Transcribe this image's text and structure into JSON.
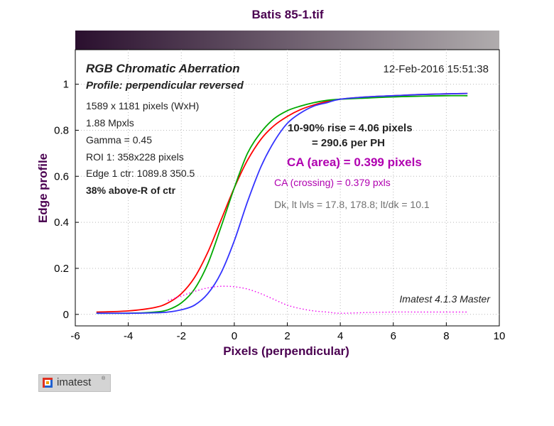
{
  "chart_data": {
    "type": "line",
    "title": "Batis 85-1.tif",
    "xlabel": "Pixels (perpendicular)",
    "ylabel": "Edge profile",
    "xlim": [
      -6,
      10
    ],
    "ylim": [
      -0.05,
      1.15
    ],
    "x_ticks": [
      -6,
      -4,
      -2,
      0,
      2,
      4,
      6,
      8,
      10
    ],
    "y_ticks": [
      0,
      0.2,
      0.4,
      0.6,
      0.8,
      1
    ],
    "x_tick_labels": [
      "-6",
      "-4",
      "-2",
      "0",
      "2",
      "4",
      "6",
      "8",
      "10"
    ],
    "y_tick_labels": [
      "0",
      "0.2",
      "0.4",
      "0.6",
      "0.8",
      "1"
    ],
    "grid": true,
    "series": [
      {
        "color": "#ff0000",
        "x": [
          -5.2,
          -4,
          -3,
          -2.5,
          -2,
          -1.5,
          -1,
          -0.5,
          0,
          0.5,
          1,
          1.5,
          2,
          2.5,
          3,
          3.5,
          4,
          5,
          6,
          7,
          8,
          8.8
        ],
        "y": [
          0.01,
          0.015,
          0.03,
          0.05,
          0.09,
          0.16,
          0.27,
          0.41,
          0.55,
          0.67,
          0.76,
          0.82,
          0.86,
          0.89,
          0.91,
          0.925,
          0.935,
          0.945,
          0.95,
          0.955,
          0.958,
          0.96
        ]
      },
      {
        "color": "#00aa00",
        "x": [
          -5.2,
          -4,
          -3,
          -2.5,
          -2,
          -1.5,
          -1,
          -0.5,
          0,
          0.5,
          1,
          1.5,
          2,
          2.5,
          3,
          3.5,
          4,
          5,
          6,
          7,
          8,
          8.8
        ],
        "y": [
          0.005,
          0.005,
          0.01,
          0.02,
          0.05,
          0.11,
          0.22,
          0.38,
          0.55,
          0.7,
          0.79,
          0.85,
          0.885,
          0.905,
          0.92,
          0.93,
          0.935,
          0.94,
          0.945,
          0.948,
          0.95,
          0.95
        ]
      },
      {
        "color": "#3333ff",
        "x": [
          -5.2,
          -4,
          -3,
          -2.5,
          -2,
          -1.5,
          -1,
          -0.5,
          0,
          0.5,
          1,
          1.5,
          2,
          2.5,
          3,
          3.5,
          4,
          5,
          6,
          7,
          8,
          8.8
        ],
        "y": [
          0.005,
          0.005,
          0.007,
          0.01,
          0.02,
          0.04,
          0.09,
          0.18,
          0.32,
          0.49,
          0.64,
          0.75,
          0.83,
          0.875,
          0.905,
          0.92,
          0.935,
          0.945,
          0.95,
          0.955,
          0.958,
          0.96
        ]
      },
      {
        "color": "#ee00ee",
        "dashed": true,
        "x": [
          -2.5,
          -2,
          -1.5,
          -1,
          -0.5,
          0,
          0.5,
          1,
          1.5,
          2,
          2.5,
          3,
          3.5,
          4,
          5,
          6,
          7,
          8,
          8.8
        ],
        "y": [
          0.06,
          0.08,
          0.1,
          0.115,
          0.122,
          0.12,
          0.11,
          0.09,
          0.065,
          0.04,
          0.025,
          0.015,
          0.01,
          0.005,
          0.008,
          0.01,
          0.01,
          0.01,
          0.01
        ]
      }
    ],
    "color_bar": {
      "from": "#2a0f2e",
      "to": "#b0acad"
    }
  },
  "annotations": {
    "heading": "RGB Chromatic Aberration",
    "profile": "Profile: perpendicular reversed",
    "date": "12-Feb-2016 15:51:38",
    "info_lines": [
      "1589 x 1181 pixels (WxH)",
      "1.88 Mpxls",
      "Gamma = 0.45",
      "ROI 1: 358x228 pixels",
      "Edge 1 ctr: 1089.8  350.5"
    ],
    "position_note": "38% above-R of ctr",
    "rise_line1": "10-90% rise = 4.06 pixels",
    "rise_line2": "= 290.6 per PH",
    "ca_area": "CA (area) = 0.399 pixels",
    "ca_crossing": "CA (crossing) = 0.379 pxls",
    "levels": "Dk, lt lvls = 17.8, 178.8;  lt/dk = 10.1",
    "version": "Imatest 4.1.3  Master"
  },
  "colors": {
    "title": "#4a0050",
    "ca_magenta": "#b000b0",
    "levels_gray": "#707070",
    "text": "#222222"
  },
  "logo": {
    "text": "imatest",
    "tm": "®"
  }
}
